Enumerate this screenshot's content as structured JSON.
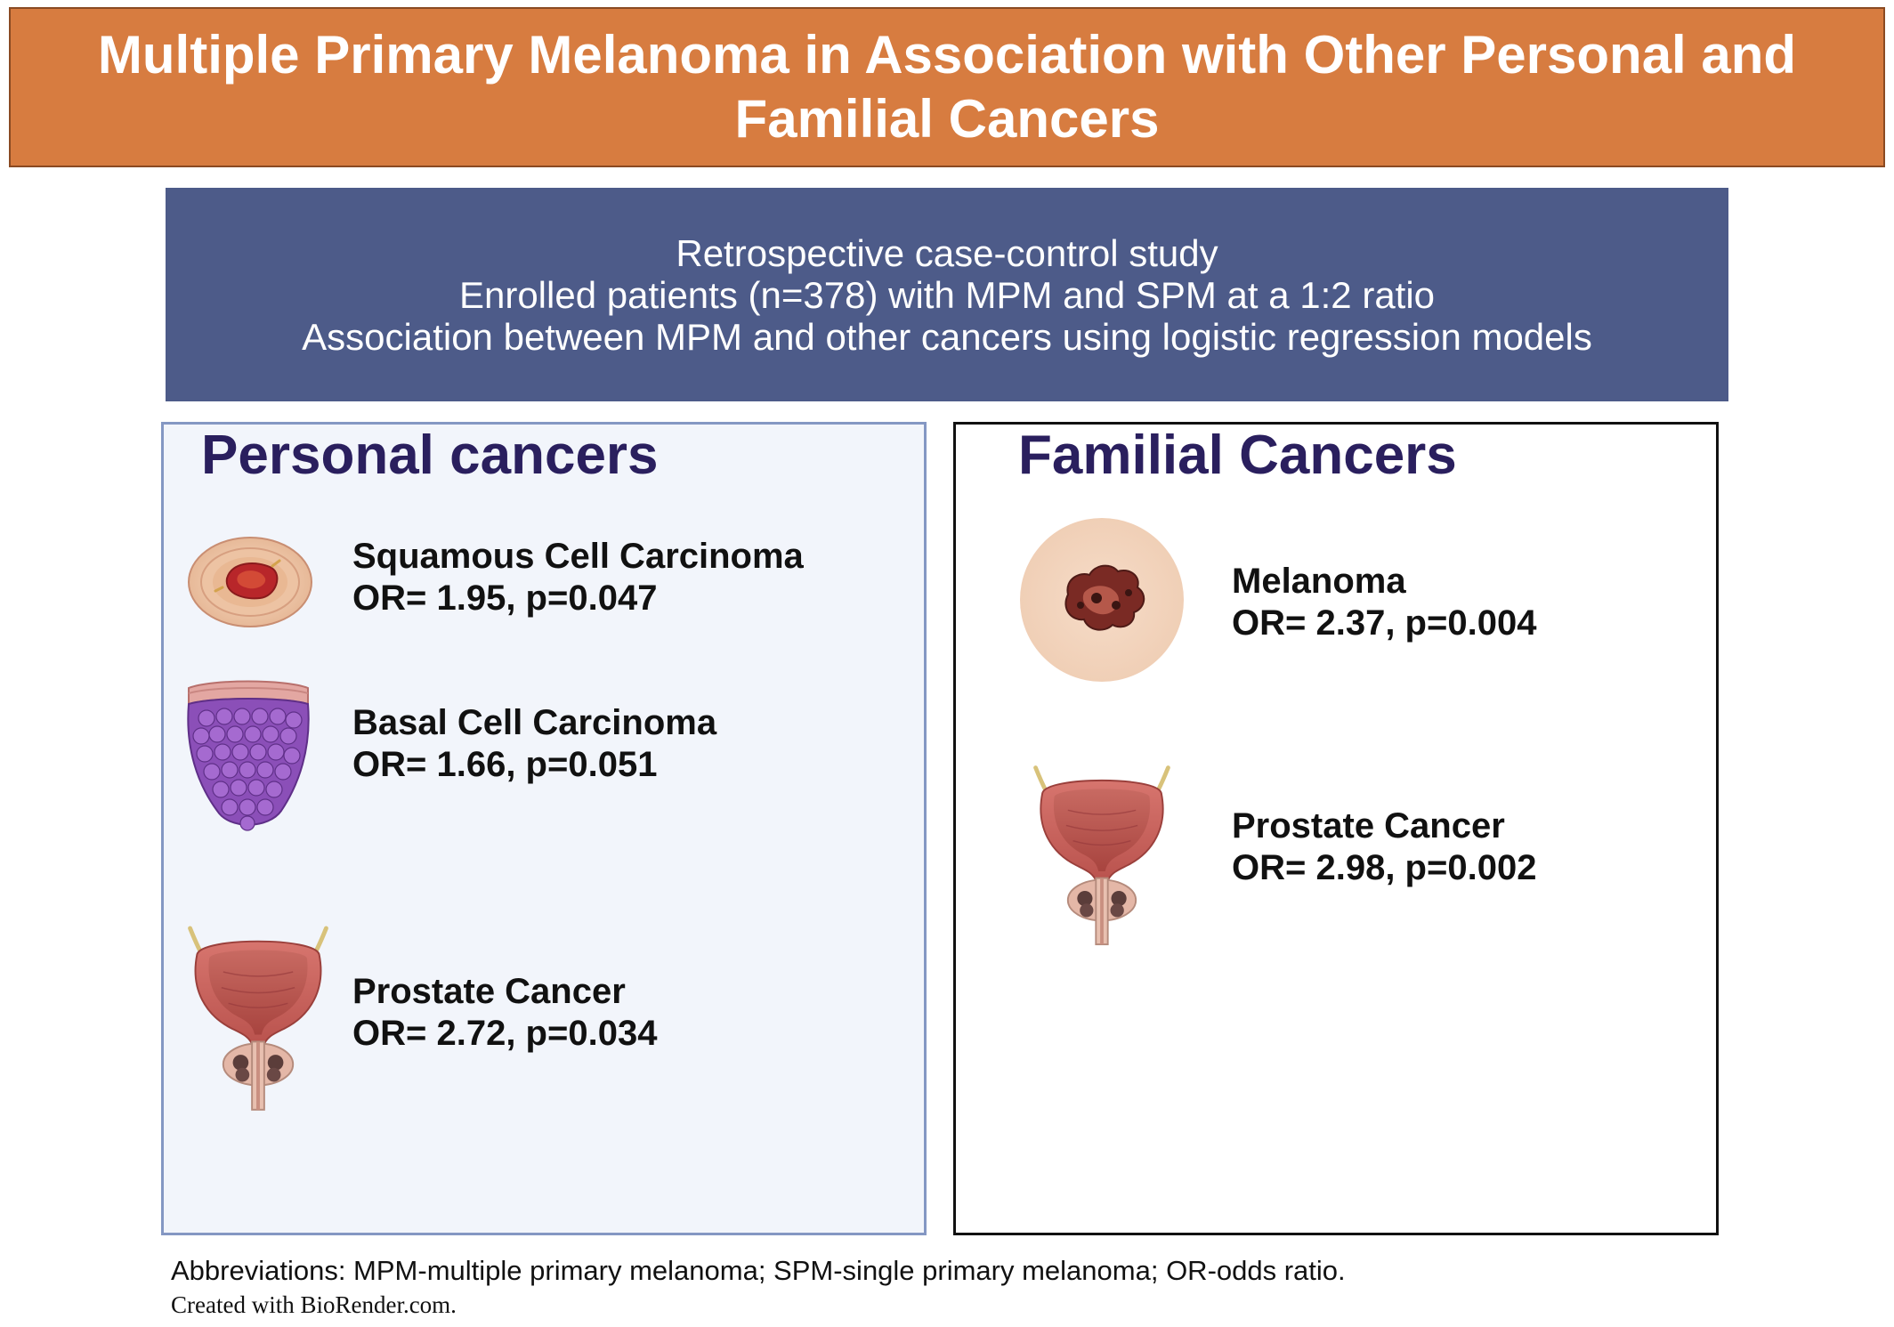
{
  "title": "Multiple Primary Melanoma in Association with Other Personal and Familial Cancers",
  "study": {
    "lines": [
      "Retrospective case-control study",
      "Enrolled patients (n=378) with MPM and SPM at a 1:2 ratio",
      "Association between MPM and other cancers using logistic regression models"
    ]
  },
  "personal": {
    "heading": "Personal cancers",
    "items": [
      {
        "name": "Squamous Cell Carcinoma",
        "stat": "OR= 1.95, p=0.047",
        "icon": "squamous-cell-carcinoma-icon"
      },
      {
        "name": "Basal Cell Carcinoma",
        "stat": "OR= 1.66, p=0.051",
        "icon": "basal-cell-carcinoma-icon"
      },
      {
        "name": "Prostate Cancer",
        "stat": "OR= 2.72, p=0.034",
        "icon": "prostate-icon"
      }
    ]
  },
  "familial": {
    "heading": "Familial Cancers",
    "items": [
      {
        "name": "Melanoma",
        "stat": "OR= 2.37, p=0.004",
        "icon": "melanoma-icon"
      },
      {
        "name": "Prostate Cancer",
        "stat": "OR= 2.98, p=0.002",
        "icon": "prostate-icon"
      }
    ]
  },
  "footer": {
    "abbreviations": "Abbreviations: MPM-multiple primary melanoma; SPM-single primary melanoma; OR-odds ratio.",
    "credit": "Created with BioRender.com."
  },
  "colors": {
    "title_banner": "#d77c40",
    "study_box": "#4d5b89",
    "heading_text": "#2a1f5e",
    "personal_panel_bg": "#f2f5fb",
    "personal_panel_border": "#8497c3",
    "familial_panel_border": "#111111"
  }
}
